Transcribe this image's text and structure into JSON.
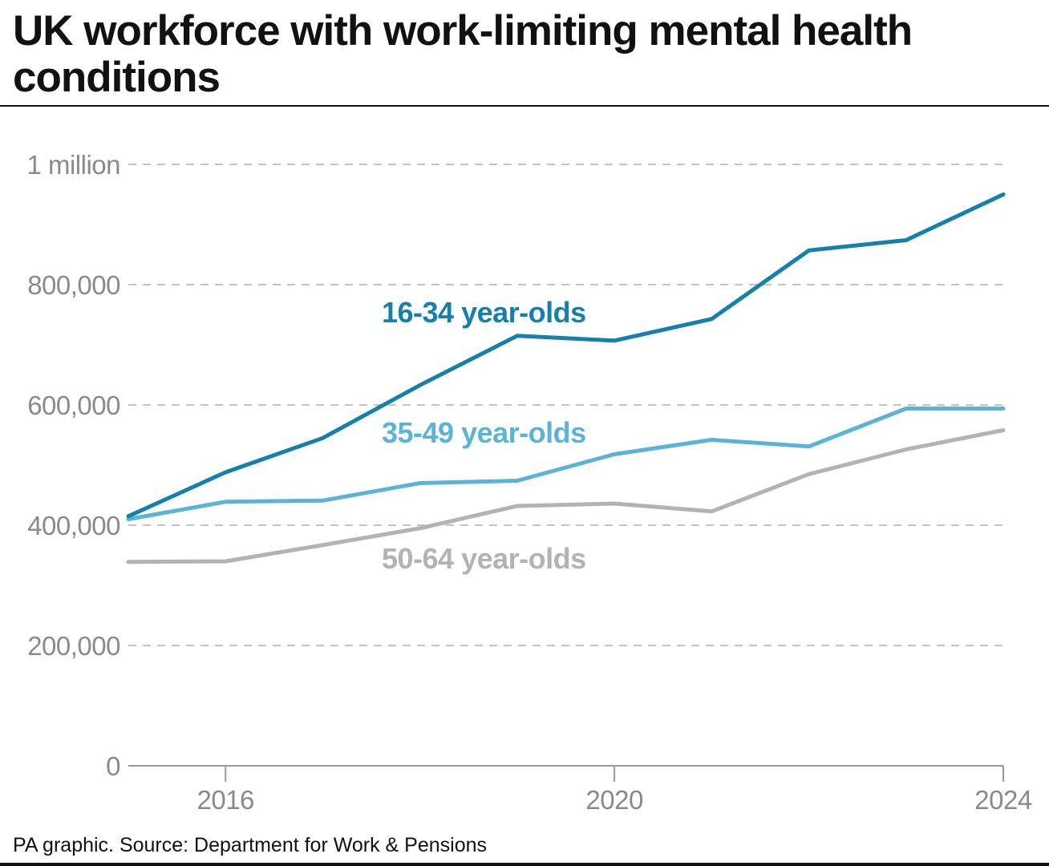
{
  "title": "UK workforce with work-limiting mental health conditions",
  "source": "PA graphic. Source: Department for Work & Pensions",
  "colors": {
    "series_16_34": "#1580ac",
    "series_35_49": "#5ab4d9",
    "series_50_64": "#b3b3b3",
    "axis_text": "#8a8a8a",
    "grid": "#b0b0b0"
  },
  "chart_data": {
    "type": "line",
    "x": [
      2015,
      2016,
      2017,
      2018,
      2019,
      2020,
      2021,
      2022,
      2023,
      2024
    ],
    "xlim": [
      2015,
      2024
    ],
    "ylim": [
      0,
      1000000
    ],
    "x_ticks": [
      2016,
      2020,
      2024
    ],
    "x_tick_labels": [
      "2016",
      "2020",
      "2024"
    ],
    "y_ticks": [
      0,
      200000,
      400000,
      600000,
      800000,
      1000000
    ],
    "y_tick_labels": [
      "0",
      "200,000",
      "400,000",
      "600,000",
      "800,000",
      "1 million"
    ],
    "grid": true,
    "series": [
      {
        "name": "16-34 year-olds",
        "color_key": "series_16_34",
        "values": [
          415000,
          488000,
          545000,
          633000,
          715000,
          707000,
          743000,
          857000,
          874000,
          950000
        ]
      },
      {
        "name": "35-49 year-olds",
        "color_key": "series_35_49",
        "values": [
          410000,
          439000,
          441000,
          470000,
          474000,
          518000,
          542000,
          531000,
          594000,
          594000
        ]
      },
      {
        "name": "50-64 year-olds",
        "color_key": "series_50_64",
        "values": [
          339000,
          340000,
          367000,
          395000,
          432000,
          436000,
          423000,
          485000,
          526000,
          558000
        ]
      }
    ]
  }
}
